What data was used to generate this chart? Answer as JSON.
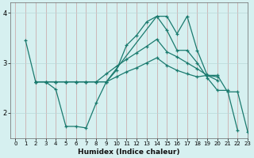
{
  "xlabel": "Humidex (Indice chaleur)",
  "bg_color": "#d6f0f0",
  "line_color": "#1a7a6e",
  "grid_color": "#b8d8d8",
  "xlim": [
    -0.5,
    23
  ],
  "ylim": [
    1.5,
    4.2
  ],
  "xticks": [
    0,
    1,
    2,
    3,
    4,
    5,
    6,
    7,
    8,
    9,
    10,
    11,
    12,
    13,
    14,
    15,
    16,
    17,
    18,
    19,
    20,
    21,
    22,
    23
  ],
  "yticks": [
    2,
    3,
    4
  ],
  "curves": [
    {
      "x": [
        1,
        2,
        3,
        4,
        5,
        6,
        7,
        8,
        9,
        10,
        11,
        12,
        13,
        14,
        15,
        16,
        17,
        18,
        19,
        20,
        21,
        22
      ],
      "y": [
        3.45,
        2.62,
        2.62,
        2.47,
        1.73,
        1.73,
        1.7,
        2.2,
        2.62,
        2.85,
        3.35,
        3.55,
        3.82,
        3.93,
        3.65,
        3.25,
        3.25,
        3.0,
        2.7,
        2.45,
        2.45,
        1.65
      ]
    },
    {
      "x": [
        2,
        3,
        4,
        5,
        6,
        7,
        8,
        9,
        10,
        11,
        12,
        13,
        14,
        15,
        16,
        17,
        18,
        19,
        20
      ],
      "y": [
        2.62,
        2.62,
        2.62,
        2.62,
        2.62,
        2.62,
        2.62,
        2.78,
        2.93,
        3.07,
        3.2,
        3.33,
        3.47,
        3.22,
        3.12,
        3.0,
        2.88,
        2.75,
        2.65
      ]
    },
    {
      "x": [
        2,
        3,
        4,
        5,
        6,
        7,
        8,
        9,
        10,
        11,
        12,
        13,
        14,
        15,
        16,
        17,
        18,
        19,
        20
      ],
      "y": [
        2.62,
        2.62,
        2.62,
        2.62,
        2.62,
        2.62,
        2.62,
        2.62,
        2.72,
        2.82,
        2.9,
        3.0,
        3.1,
        2.95,
        2.85,
        2.78,
        2.72,
        2.75,
        2.72
      ]
    },
    {
      "x": [
        2,
        3,
        4,
        5,
        6,
        7,
        8,
        9,
        14,
        15,
        16,
        17,
        18,
        19,
        20,
        21,
        22,
        23
      ],
      "y": [
        2.62,
        2.62,
        2.62,
        2.62,
        2.62,
        2.62,
        2.62,
        2.62,
        3.93,
        3.93,
        3.58,
        3.93,
        3.25,
        2.75,
        2.75,
        2.42,
        2.42,
        1.62
      ]
    }
  ]
}
